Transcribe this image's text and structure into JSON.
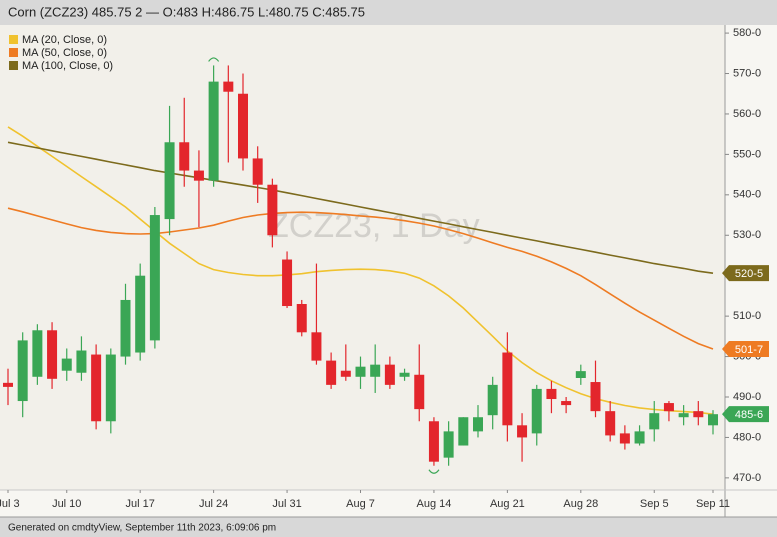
{
  "chart_data": {
    "type": "candlestick",
    "title": "Corn (ZCZ23) 485.75 2 — O:483 H:486.75 L:480.75 C:485.75",
    "watermark": "ZCZ23, 1 Day",
    "footer": "Generated on cmdtyView, September 11th 2023, 6:09:06 pm",
    "categories": [
      "Jul 3",
      null,
      null,
      null,
      "Jul 10",
      null,
      null,
      null,
      null,
      "Jul 17",
      null,
      null,
      null,
      null,
      "Jul 24",
      null,
      null,
      null,
      null,
      "Jul 31",
      null,
      null,
      null,
      null,
      "Aug 7",
      null,
      null,
      null,
      null,
      "Aug 14",
      null,
      null,
      null,
      null,
      "Aug 21",
      null,
      null,
      null,
      null,
      "Aug 28",
      null,
      null,
      null,
      null,
      "Sep 5",
      null,
      null,
      null,
      "Sep 11"
    ],
    "open": [
      493.5,
      489,
      495,
      506.5,
      496.5,
      496,
      500.5,
      484,
      500,
      501,
      504,
      534,
      553,
      546,
      543.5,
      568,
      565,
      549,
      542.5,
      524,
      513,
      506,
      499,
      496.5,
      495,
      495,
      498,
      495,
      495.5,
      484,
      475,
      478,
      481.5,
      485.5,
      501,
      483,
      481,
      492,
      489,
      494.7,
      493.7,
      486.5,
      481,
      478.5,
      482,
      488.5,
      485,
      486.5,
      483
    ],
    "high": [
      497,
      506,
      508,
      508.5,
      502,
      505,
      503,
      502,
      518,
      523,
      537,
      562,
      564,
      551,
      572,
      572,
      570,
      552,
      544,
      526,
      514,
      523,
      501,
      503,
      500,
      503,
      500,
      497,
      503,
      485,
      484,
      485,
      488,
      495,
      506,
      486,
      493,
      494,
      490,
      498,
      499,
      489,
      483,
      483,
      489,
      489,
      488,
      489,
      486.75
    ],
    "low": [
      488,
      485,
      493,
      492,
      494,
      494,
      482,
      481,
      498,
      499,
      502,
      530,
      542,
      532,
      542,
      548,
      546,
      538,
      527,
      512,
      505,
      498,
      492,
      494,
      492,
      491,
      492,
      494,
      484,
      473,
      473,
      478,
      480,
      482,
      479,
      474,
      478,
      486,
      486,
      493,
      485,
      479,
      477,
      478,
      479,
      484,
      483,
      483,
      480.75
    ],
    "close": [
      492.5,
      504,
      506.5,
      494.5,
      499.5,
      501.5,
      484,
      500.5,
      514,
      520,
      535,
      553,
      546,
      543.5,
      568,
      565.5,
      549,
      542.5,
      530,
      512.5,
      506,
      499,
      493,
      495,
      497.5,
      498,
      493,
      496,
      487,
      474,
      481.5,
      485,
      485,
      493,
      483,
      480,
      492,
      489.5,
      488,
      496.4,
      486.5,
      480.5,
      478.5,
      481.5,
      486,
      486.5,
      486,
      485,
      485.75
    ],
    "up_color": "#3aa655",
    "down_color": "#e3262c",
    "last_price_label": "485-6",
    "series": [
      {
        "name": "MA (20, Close, 0)",
        "color": "#f0c22e",
        "values": [
          556.8,
          554.5,
          552,
          549.5,
          547,
          544.5,
          542,
          539.5,
          537,
          534,
          531,
          528,
          525.5,
          523,
          521.5,
          520.8,
          520.3,
          520,
          520,
          520.2,
          520.5,
          521,
          521.3,
          521.5,
          521.6,
          521.5,
          521.2,
          520.6,
          519.4,
          517.5,
          515,
          512,
          508.5,
          505,
          501.4,
          498.5,
          496,
          494,
          492.3,
          490.8,
          489.6,
          488.7,
          487.9,
          487.3,
          486.9,
          486.6,
          486.4,
          486.2,
          485.75
        ]
      },
      {
        "name": "MA (50, Close, 0)",
        "color": "#ee7b23",
        "last_label": "501-7",
        "values": [
          536.7,
          535.8,
          534.8,
          533.8,
          532.8,
          531.9,
          531.2,
          530.7,
          530.4,
          530.3,
          530.4,
          530.8,
          531.3,
          531.8,
          532.5,
          533.5,
          534.4,
          535,
          535.4,
          535.6,
          535.7,
          535.6,
          535.4,
          535.1,
          534.8,
          534.5,
          534.1,
          533.6,
          533,
          532.3,
          531.4,
          530.4,
          529.3,
          528.1,
          527,
          526,
          524.8,
          523.4,
          521.8,
          520,
          517.8,
          515.5,
          513.2,
          511,
          509,
          507,
          505,
          503.2,
          501.875
        ]
      },
      {
        "name": "MA (100, Close, 0)",
        "color": "#7c6a1c",
        "last_label": "520-5",
        "values": [
          553,
          552.3,
          551.6,
          550.9,
          550.2,
          549.5,
          548.8,
          548.1,
          547.4,
          546.7,
          546,
          545.4,
          544.8,
          544.2,
          543.6,
          543,
          542.4,
          541.8,
          541.2,
          540.5,
          539.8,
          539.1,
          538.4,
          537.7,
          537,
          536.3,
          535.6,
          534.9,
          534.2,
          533.5,
          532.8,
          532.1,
          531.4,
          530.7,
          530,
          529.3,
          528.6,
          527.9,
          527.2,
          526.5,
          525.8,
          525.1,
          524.4,
          523.7,
          523,
          522.4,
          521.8,
          521.1,
          520.625
        ]
      }
    ],
    "ylim": [
      467,
      582
    ],
    "yticks": [
      {
        "value": 470,
        "label": "470-0"
      },
      {
        "value": 480,
        "label": "480-0"
      },
      {
        "value": 490,
        "label": "490-0"
      },
      {
        "value": 500,
        "label": "500-0"
      },
      {
        "value": 510,
        "label": "510-0"
      },
      {
        "value": 520,
        "label": "520-0"
      },
      {
        "value": 530,
        "label": "530-0"
      },
      {
        "value": 540,
        "label": "540-0"
      },
      {
        "value": 550,
        "label": "550-0"
      },
      {
        "value": 560,
        "label": "560-0"
      },
      {
        "value": 570,
        "label": "570-0"
      },
      {
        "value": 580,
        "label": "580-0"
      }
    ],
    "grid": false,
    "legend": "top-left"
  }
}
